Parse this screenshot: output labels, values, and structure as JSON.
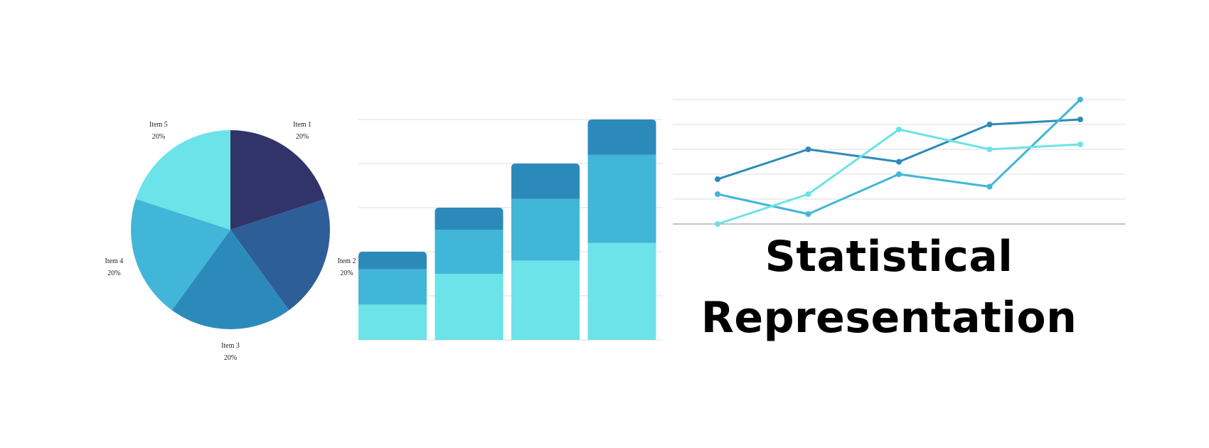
{
  "title": {
    "line1": "Statistical",
    "line2": "Representation"
  },
  "colors": {
    "navy": "#303468",
    "blue": "#2e5e97",
    "mid_blue": "#2c8abb",
    "sky": "#42b6d8",
    "cyan": "#6be3e8",
    "grid": "#dddddd",
    "axis": "#888888"
  },
  "chart_data": [
    {
      "type": "pie",
      "labels": [
        "Item 1",
        "Item 2",
        "Item 3",
        "Item 4",
        "Item 5"
      ],
      "values": [
        20,
        20,
        20,
        20,
        20
      ],
      "value_labels": [
        "20%",
        "20%",
        "20%",
        "20%",
        "20%"
      ],
      "slice_colors": [
        "#303468",
        "#2e5e97",
        "#2c8abb",
        "#42b6d8",
        "#6be3e8"
      ]
    },
    {
      "type": "bar",
      "stacked": true,
      "categories": [
        "",
        "",
        "",
        ""
      ],
      "ylim": [
        0,
        5
      ],
      "grid": true,
      "series": [
        {
          "values": [
            0.8,
            1.5,
            1.8,
            2.2
          ],
          "color": "#6be3e8"
        },
        {
          "values": [
            0.8,
            1.0,
            1.4,
            2.0
          ],
          "color": "#42b6d8"
        },
        {
          "values": [
            0.4,
            0.5,
            0.8,
            0.8
          ],
          "color": "#2c8abb"
        }
      ]
    },
    {
      "type": "line",
      "x": [
        1,
        2,
        3,
        4,
        5
      ],
      "ylim": [
        0,
        5
      ],
      "grid": true,
      "series": [
        {
          "values": [
            1.8,
            3.0,
            2.5,
            4.0,
            4.2
          ],
          "color": "#2c8abb"
        },
        {
          "values": [
            1.2,
            0.4,
            2.0,
            1.5,
            5.0
          ],
          "color": "#42b6d8"
        },
        {
          "values": [
            0.0,
            1.2,
            3.8,
            3.0,
            3.2
          ],
          "color": "#6be3e8"
        }
      ]
    }
  ]
}
